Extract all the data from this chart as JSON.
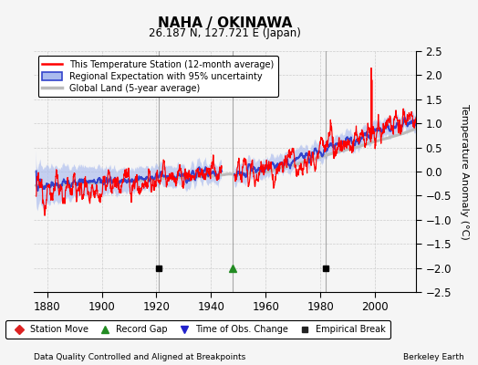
{
  "title": "NAHA / OKINAWA",
  "subtitle": "26.187 N, 127.721 E (Japan)",
  "ylabel": "Temperature Anomaly (°C)",
  "xlabel_note": "Data Quality Controlled and Aligned at Breakpoints",
  "credit": "Berkeley Earth",
  "xlim": [
    1875,
    2015
  ],
  "ylim": [
    -2.5,
    2.5
  ],
  "yticks": [
    -2.5,
    -2,
    -1.5,
    -1,
    -0.5,
    0,
    0.5,
    1,
    1.5,
    2,
    2.5
  ],
  "xticks": [
    1880,
    1900,
    1920,
    1940,
    1960,
    1980,
    2000
  ],
  "year_start": 1876,
  "n_months": 1680,
  "red_color": "#FF0000",
  "blue_color": "#3344CC",
  "blue_fill_color": "#AABBEE",
  "gray_color": "#BBBBBB",
  "bg_color": "#F5F5F5",
  "event_markers": {
    "empirical_break": [
      1921,
      1982
    ],
    "record_gap": [
      1948
    ],
    "station_move": [],
    "obs_change": []
  },
  "legend_items": [
    {
      "label": "This Temperature Station (12-month average)",
      "color": "#FF0000",
      "lw": 1.5
    },
    {
      "label": "Regional Expectation with 95% uncertainty",
      "color": "#3344CC",
      "fill": "#AABBEE"
    },
    {
      "label": "Global Land (5-year average)",
      "color": "#BBBBBB",
      "lw": 2.5
    }
  ],
  "bottom_legend": [
    {
      "label": "Station Move",
      "marker": "D",
      "color": "#DD2222"
    },
    {
      "label": "Record Gap",
      "marker": "^",
      "color": "#228B22"
    },
    {
      "label": "Time of Obs. Change",
      "marker": "v",
      "color": "#2222CC"
    },
    {
      "label": "Empirical Break",
      "marker": "s",
      "color": "#222222"
    }
  ]
}
